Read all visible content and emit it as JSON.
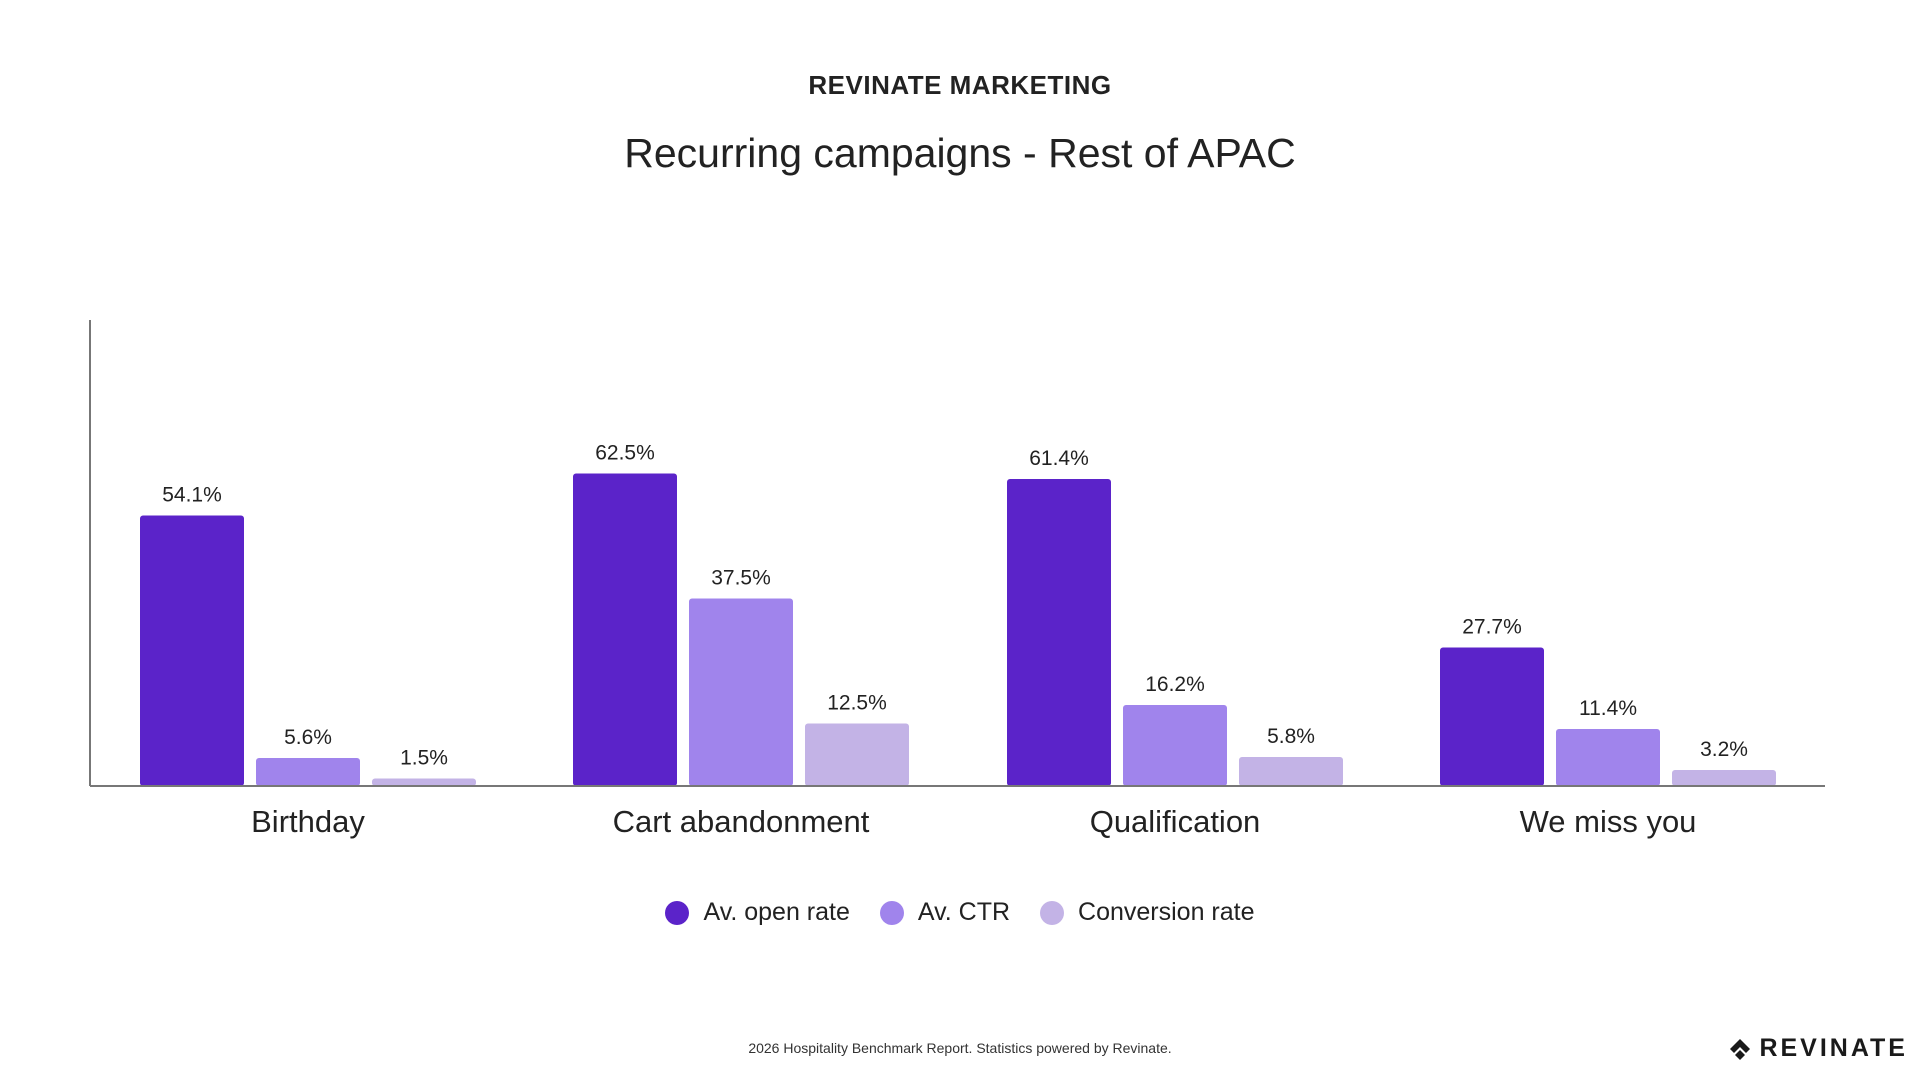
{
  "header": {
    "brand": "REVINATE MARKETING"
  },
  "chart_data": {
    "type": "bar",
    "title": "Recurring campaigns - Rest of APAC",
    "categories": [
      "Birthday",
      "Cart abandonment",
      "Qualification",
      "We miss you"
    ],
    "series": [
      {
        "name": "Av. open rate",
        "values": [
          54.1,
          62.5,
          61.4,
          27.7
        ],
        "labels": [
          "54.1%",
          "62.5%",
          "61.4%",
          "27.7%"
        ],
        "color": "#5b23c9"
      },
      {
        "name": "Av. CTR",
        "values": [
          5.6,
          37.5,
          16.2,
          11.4
        ],
        "labels": [
          "5.6%",
          "37.5%",
          "16.2%",
          "11.4%"
        ],
        "color": "#a084ec"
      },
      {
        "name": "Conversion rate",
        "values": [
          1.5,
          12.5,
          5.8,
          3.2
        ],
        "labels": [
          "1.5%",
          "12.5%",
          "5.8%",
          "3.2%"
        ],
        "color": "#c3b3e6"
      }
    ],
    "ylim": [
      0,
      80
    ],
    "grid": false,
    "legend_position": "bottom-center",
    "axis_color": "#777777"
  },
  "footer": {
    "note": "2026 Hospitality Benchmark Report. Statistics powered by Revinate.",
    "logo_text": "REVINATE",
    "logo_icon": "revinate-logo-icon"
  }
}
